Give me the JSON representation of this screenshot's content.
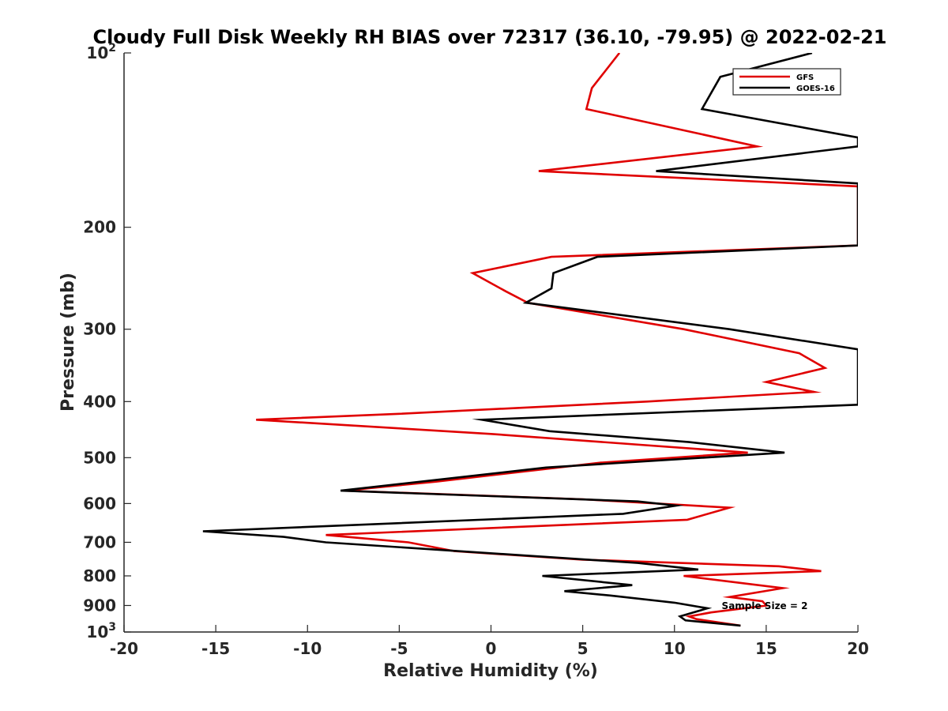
{
  "chart_data": {
    "type": "line",
    "title": "Cloudy Full Disk Weekly RH BIAS over 72317 (36.10, -79.95) @ 2022-02-21",
    "xlabel": "Relative Humidity (%)",
    "ylabel": "Pressure (mb)",
    "xlim": [
      -20,
      20
    ],
    "ylim": [
      100,
      1000
    ],
    "y_scale": "log",
    "y_reversed": true,
    "xticks": [
      -20,
      -15,
      -10,
      -5,
      0,
      5,
      10,
      15,
      20
    ],
    "xtick_labels": [
      "-20",
      "-15",
      "-10",
      "-5",
      "0",
      "5",
      "10",
      "15",
      "20"
    ],
    "yticks": [
      100,
      200,
      300,
      400,
      500,
      600,
      700,
      800,
      900,
      1000
    ],
    "ytick_labels": [
      {
        "base": "10",
        "exp": "2"
      },
      {
        "base": "200",
        "exp": ""
      },
      {
        "base": "300",
        "exp": ""
      },
      {
        "base": "400",
        "exp": ""
      },
      {
        "base": "500",
        "exp": ""
      },
      {
        "base": "600",
        "exp": ""
      },
      {
        "base": "700",
        "exp": ""
      },
      {
        "base": "800",
        "exp": ""
      },
      {
        "base": "900",
        "exp": ""
      },
      {
        "base": "10",
        "exp": "3"
      }
    ],
    "grid": false,
    "legend_position": "top-right",
    "annotation": "Sample Size = 2",
    "series": [
      {
        "name": "GFS",
        "color": "#e00000",
        "points": [
          [
            7.0,
            100
          ],
          [
            5.5,
            115
          ],
          [
            5.2,
            125
          ],
          [
            14.5,
            145
          ],
          [
            2.6,
            160
          ],
          [
            20.0,
            170
          ],
          [
            20.0,
            215
          ],
          [
            3.3,
            225
          ],
          [
            -1.0,
            240
          ],
          [
            0.8,
            258
          ],
          [
            2.0,
            270
          ],
          [
            10.5,
            300
          ],
          [
            16.8,
            330
          ],
          [
            18.2,
            350
          ],
          [
            15.0,
            370
          ],
          [
            17.6,
            385
          ],
          [
            8.5,
            400
          ],
          [
            -5.0,
            420
          ],
          [
            -12.8,
            430
          ],
          [
            0.0,
            455
          ],
          [
            14.0,
            490
          ],
          [
            6.0,
            510
          ],
          [
            -3.0,
            550
          ],
          [
            -8.0,
            570
          ],
          [
            5.0,
            590
          ],
          [
            13.0,
            610
          ],
          [
            10.7,
            640
          ],
          [
            -9.0,
            680
          ],
          [
            -4.5,
            700
          ],
          [
            -2.0,
            725
          ],
          [
            5.0,
            750
          ],
          [
            15.7,
            770
          ],
          [
            18.0,
            785
          ],
          [
            10.5,
            800
          ],
          [
            15.9,
            840
          ],
          [
            13.0,
            870
          ],
          [
            14.8,
            885
          ],
          [
            15.0,
            900
          ],
          [
            12.0,
            925
          ],
          [
            10.8,
            940
          ],
          [
            11.2,
            950
          ],
          [
            13.6,
            975
          ]
        ]
      },
      {
        "name": "GOES-16",
        "color": "#000000",
        "points": [
          [
            17.5,
            100
          ],
          [
            12.5,
            110
          ],
          [
            11.5,
            125
          ],
          [
            20.0,
            140
          ],
          [
            20.0,
            145
          ],
          [
            9.0,
            160
          ],
          [
            20.0,
            168
          ],
          [
            20.0,
            215
          ],
          [
            5.8,
            225
          ],
          [
            3.4,
            240
          ],
          [
            3.3,
            255
          ],
          [
            1.9,
            270
          ],
          [
            13.0,
            300
          ],
          [
            20.0,
            325
          ],
          [
            20.0,
            405
          ],
          [
            -0.5,
            430
          ],
          [
            3.2,
            450
          ],
          [
            10.8,
            470
          ],
          [
            16.0,
            490
          ],
          [
            3.0,
            520
          ],
          [
            -8.2,
            570
          ],
          [
            8.0,
            595
          ],
          [
            10.1,
            605
          ],
          [
            7.2,
            625
          ],
          [
            -15.7,
            670
          ],
          [
            -11.3,
            685
          ],
          [
            -9.0,
            700
          ],
          [
            8.0,
            760
          ],
          [
            11.3,
            780
          ],
          [
            2.8,
            800
          ],
          [
            7.7,
            830
          ],
          [
            4.0,
            850
          ],
          [
            6.5,
            865
          ],
          [
            10.0,
            890
          ],
          [
            11.8,
            910
          ],
          [
            10.3,
            940
          ],
          [
            10.6,
            955
          ],
          [
            13.6,
            975
          ]
        ]
      }
    ]
  }
}
